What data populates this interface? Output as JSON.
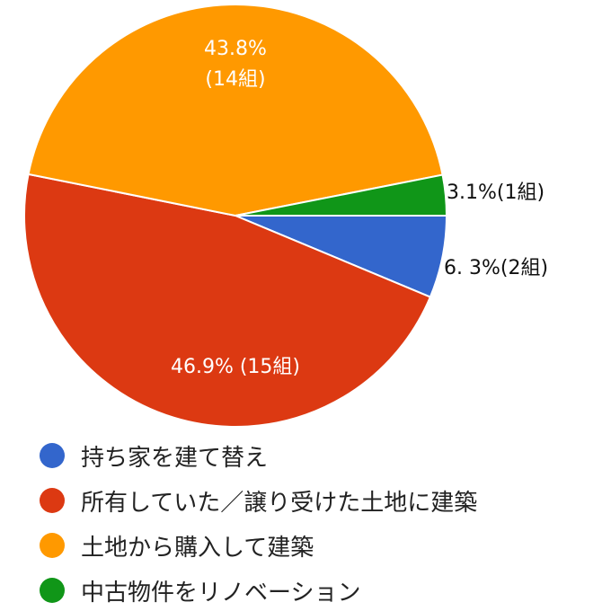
{
  "chart_data": {
    "type": "pie",
    "categories": [
      "持ち家を建て替え",
      "所有していた／譲り受けた土地に建築",
      "土地から購入して建築",
      "中古物件をリノベーション"
    ],
    "values": [
      6.3,
      46.9,
      43.8,
      3.1
    ],
    "value_labels": [
      "6. 3%(2組)",
      "46.9% (15組)",
      "43.8%\n(14組)",
      "3.1%(1組)"
    ],
    "colors": [
      "#3366cc",
      "#dc3912",
      "#ff9900",
      "#109618"
    ],
    "legend": "bottom"
  }
}
